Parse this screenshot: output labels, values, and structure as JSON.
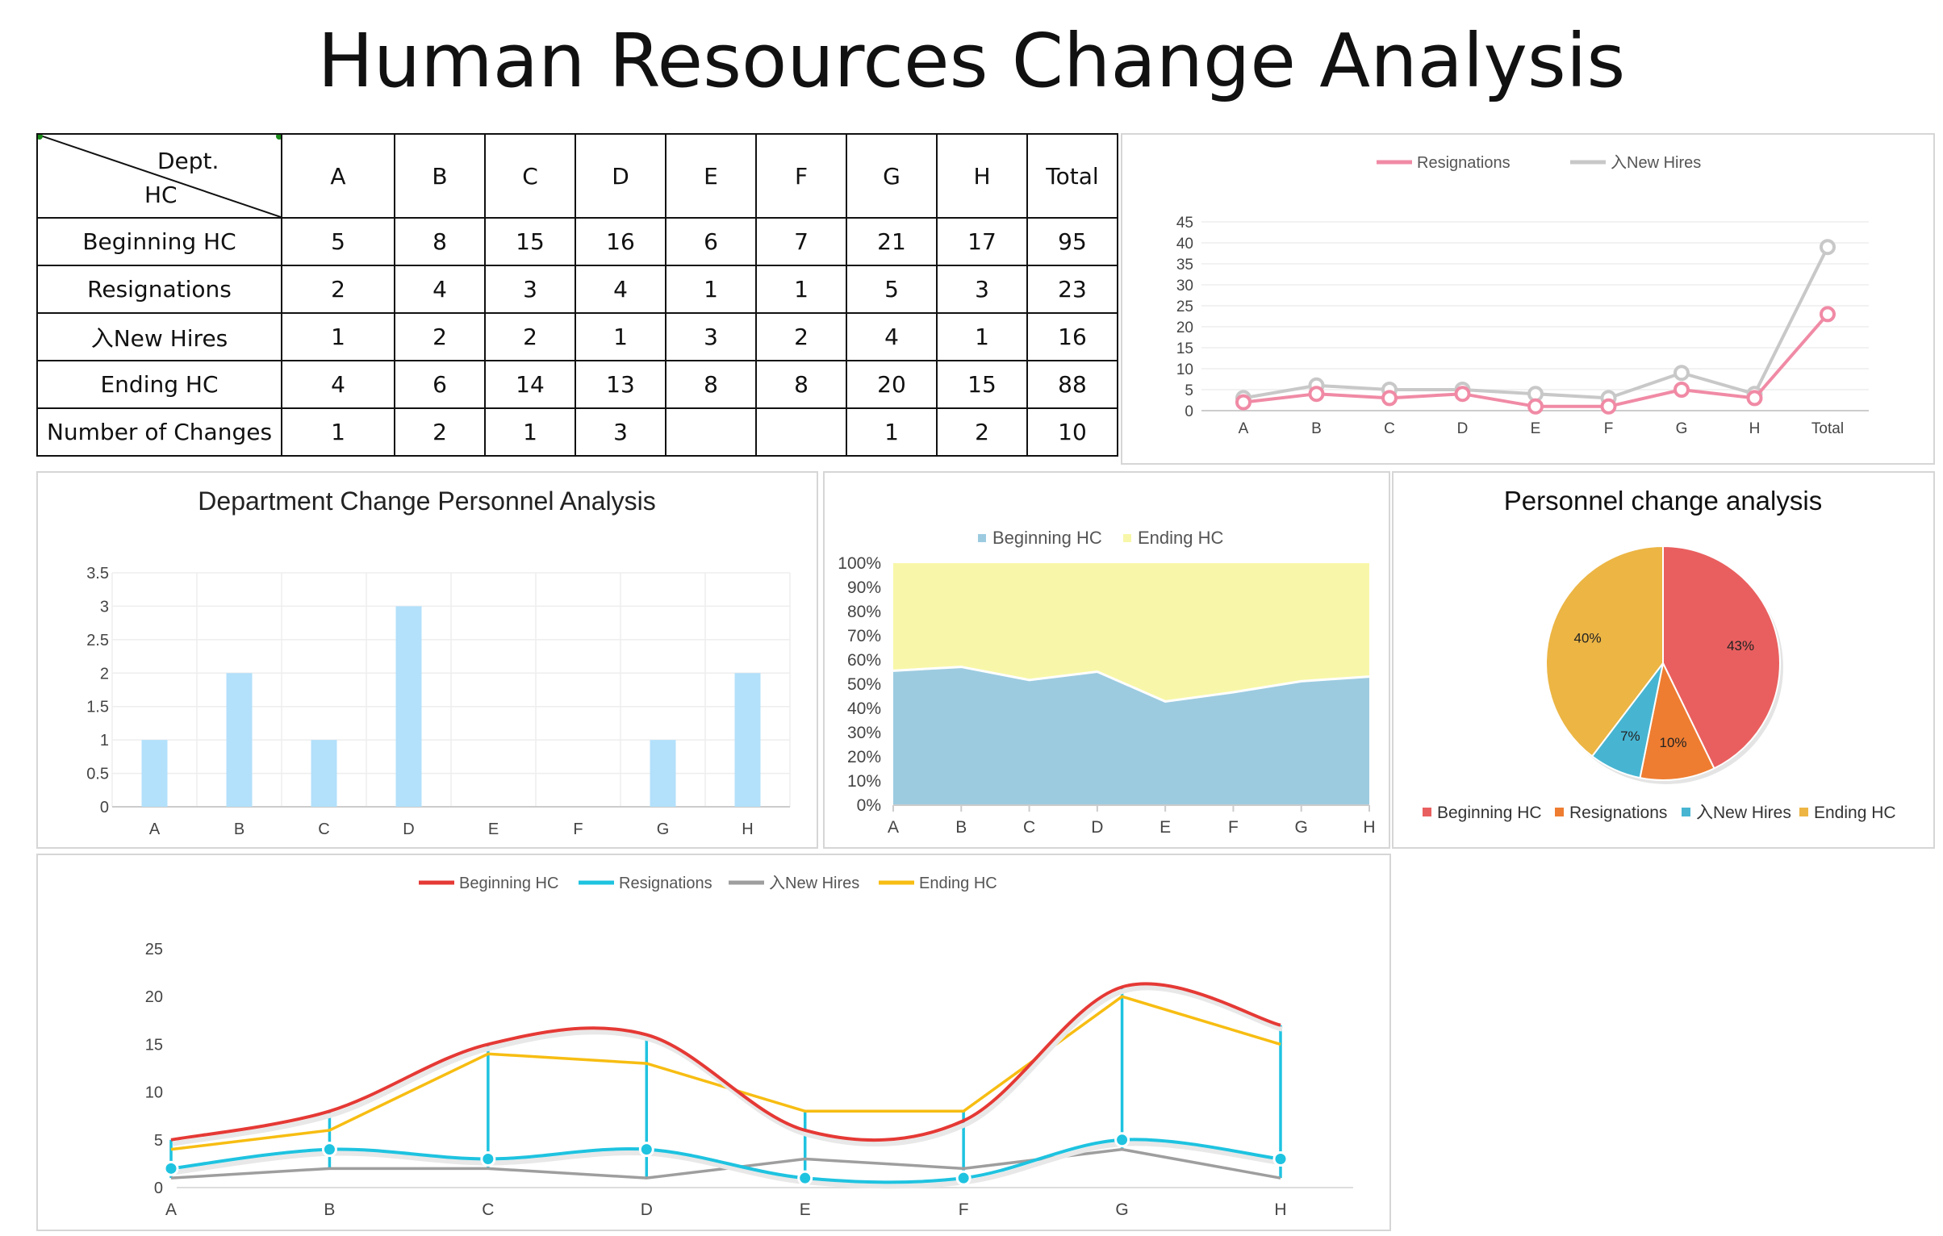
{
  "title": "Human Resources Change Analysis",
  "table": {
    "corner_dept": "Dept.",
    "corner_hc": "HC",
    "columns": [
      "A",
      "B",
      "C",
      "D",
      "E",
      "F",
      "G",
      "H",
      "Total"
    ],
    "rows": [
      {
        "label": "Beginning HC",
        "values": [
          "5",
          "8",
          "15",
          "16",
          "6",
          "7",
          "21",
          "17",
          "95"
        ]
      },
      {
        "label": "Resignations",
        "values": [
          "2",
          "4",
          "3",
          "4",
          "1",
          "1",
          "5",
          "3",
          "23"
        ]
      },
      {
        "label": "入New Hires",
        "values": [
          "1",
          "2",
          "2",
          "1",
          "3",
          "2",
          "4",
          "1",
          "16"
        ]
      },
      {
        "label": "Ending HC",
        "values": [
          "4",
          "6",
          "14",
          "13",
          "8",
          "8",
          "20",
          "15",
          "88"
        ]
      },
      {
        "label": "Number of Changes",
        "values": [
          "1",
          "2",
          "1",
          "3",
          "",
          "",
          "1",
          "2",
          "10"
        ]
      }
    ]
  },
  "chart_data": [
    {
      "id": "top-line",
      "type": "line",
      "title": "",
      "categories": [
        "A",
        "B",
        "C",
        "D",
        "E",
        "F",
        "G",
        "H",
        "Total"
      ],
      "series": [
        {
          "name": "Resignations",
          "color": "#f08aa5",
          "values": [
            2,
            4,
            3,
            4,
            1,
            1,
            5,
            3,
            23
          ]
        },
        {
          "name": "入New Hires",
          "color": "#c8c8c8",
          "values": [
            3,
            6,
            5,
            5,
            4,
            3,
            9,
            4,
            39
          ]
        }
      ],
      "ylim": [
        0,
        45
      ],
      "yticks": [
        "0",
        "5",
        "10",
        "15",
        "20",
        "25",
        "30",
        "35",
        "40",
        "45"
      ],
      "legend": "top",
      "grid": true
    },
    {
      "id": "dept-bar",
      "type": "bar",
      "title": "Department Change Personnel Analysis",
      "categories": [
        "A",
        "B",
        "C",
        "D",
        "E",
        "F",
        "G",
        "H"
      ],
      "values": [
        1,
        2,
        1,
        3,
        0,
        0,
        1,
        2
      ],
      "color": "#b3e0fb",
      "ylim": [
        0,
        3.5
      ],
      "yticks": [
        "0",
        "0.5",
        "1",
        "1.5",
        "2",
        "2.5",
        "3",
        "3.5"
      ],
      "grid": true
    },
    {
      "id": "stacked-area",
      "type": "area",
      "title": "",
      "categories": [
        "A",
        "B",
        "C",
        "D",
        "E",
        "F",
        "G",
        "H"
      ],
      "series": [
        {
          "name": "Beginning HC",
          "color": "#9ccbe0",
          "values": [
            5,
            8,
            15,
            16,
            6,
            7,
            21,
            17
          ]
        },
        {
          "name": "Ending HC",
          "color": "#f8f7a9",
          "values": [
            4,
            6,
            14,
            13,
            8,
            8,
            20,
            15
          ]
        }
      ],
      "stacking": "percent",
      "yticks": [
        "0%",
        "10%",
        "20%",
        "30%",
        "40%",
        "50%",
        "60%",
        "70%",
        "80%",
        "90%",
        "100%"
      ],
      "legend": "top"
    },
    {
      "id": "pie",
      "type": "pie",
      "title": "Personnel change analysis",
      "labels": [
        "Beginning HC",
        "Resignations",
        "入New Hires",
        "Ending HC"
      ],
      "values": [
        95,
        23,
        16,
        88
      ],
      "percent_labels": [
        "43%",
        "10%",
        "7%",
        "40%"
      ],
      "colors": [
        "#e95f5f",
        "#ee7d31",
        "#47b5d2",
        "#ecb544"
      ],
      "legend": "bottom"
    },
    {
      "id": "bottom-line",
      "type": "line",
      "title": "",
      "categories": [
        "A",
        "B",
        "C",
        "D",
        "E",
        "F",
        "G",
        "H"
      ],
      "series": [
        {
          "name": "Beginning HC",
          "color": "#e53935",
          "values": [
            5,
            8,
            15,
            16,
            6,
            7,
            21,
            17
          ],
          "smooth": true
        },
        {
          "name": "Resignations",
          "color": "#1ec3e0",
          "values": [
            2,
            4,
            3,
            4,
            1,
            1,
            5,
            3
          ],
          "smooth": true,
          "markers": true
        },
        {
          "name": "入New Hires",
          "color": "#9e9e9e",
          "values": [
            1,
            2,
            2,
            1,
            3,
            2,
            4,
            1
          ]
        },
        {
          "name": "Ending HC",
          "color": "#f7bd12",
          "values": [
            4,
            6,
            14,
            13,
            8,
            8,
            20,
            15
          ]
        }
      ],
      "ylim": [
        0,
        25
      ],
      "yticks": [
        "0",
        "5",
        "10",
        "15",
        "20",
        "25"
      ],
      "legend": "top"
    }
  ]
}
